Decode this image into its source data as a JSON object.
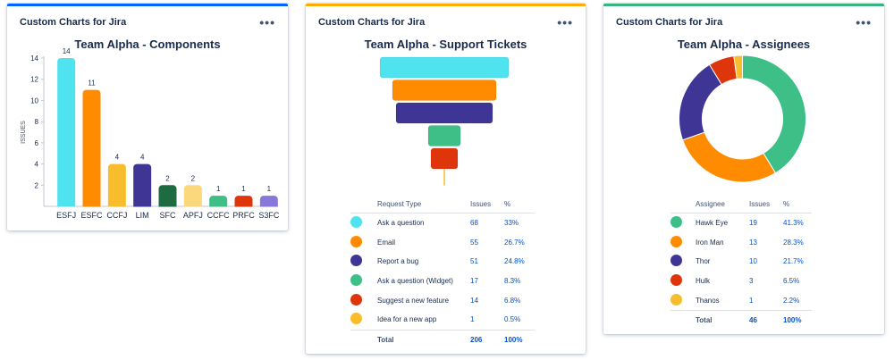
{
  "cards": [
    {
      "app_title": "Custom Charts for Jira",
      "menu_icon": "more-horizontal-icon",
      "accent": "#0065ff"
    },
    {
      "app_title": "Custom Charts for Jira",
      "menu_icon": "more-horizontal-icon",
      "accent": "#ffab00"
    },
    {
      "app_title": "Custom Charts for Jira",
      "menu_icon": "more-horizontal-icon",
      "accent": "#36b37e"
    }
  ],
  "chart_data": [
    {
      "type": "bar",
      "title": "Team Alpha - Components",
      "xlabel": "",
      "ylabel": "ISSUES",
      "ylim": [
        0,
        14
      ],
      "yticks": [
        2,
        4,
        6,
        8,
        10,
        12,
        14
      ],
      "categories": [
        "ESFJ",
        "ESFC",
        "CCFJ",
        "LIM",
        "SFC",
        "APFJ",
        "CCFC",
        "PRFC",
        "S3FC"
      ],
      "values": [
        14,
        11,
        4,
        4,
        2,
        2,
        1,
        1,
        1
      ],
      "colors": [
        "#4fe3f0",
        "#ff8b00",
        "#f8bd2c",
        "#3f3595",
        "#1e6b42",
        "#fbd87c",
        "#3ebf88",
        "#de350b",
        "#8777d9"
      ]
    },
    {
      "type": "funnel",
      "title": "Team Alpha - Support Tickets",
      "headers": {
        "label": "Request Type",
        "issues": "Issues",
        "pct": "%"
      },
      "categories": [
        "Ask a question",
        "Email",
        "Report a bug",
        "Ask a question (Widget)",
        "Suggest a new feature",
        "Idea for a new app"
      ],
      "values": [
        68,
        55,
        51,
        17,
        14,
        1
      ],
      "percent_labels": [
        "33%",
        "26.7%",
        "24.8%",
        "8.3%",
        "6.8%",
        "0.5%"
      ],
      "colors": [
        "#4fe3f0",
        "#ff8b00",
        "#3f3595",
        "#3ebf88",
        "#de350b",
        "#f8bd2c"
      ],
      "total": {
        "label": "Total",
        "issues": "206",
        "pct": "100%"
      }
    },
    {
      "type": "pie",
      "title": "Team Alpha - Assignees",
      "headers": {
        "label": "Assignee",
        "issues": "Issues",
        "pct": "%"
      },
      "categories": [
        "Hawk Eye",
        "Iron Man",
        "Thor",
        "Hulk",
        "Thanos"
      ],
      "values": [
        19,
        13,
        10,
        3,
        1
      ],
      "percent_labels": [
        "41.3%",
        "28.3%",
        "21.7%",
        "6.5%",
        "2.2%"
      ],
      "colors": [
        "#3ebf88",
        "#ff8b00",
        "#3f3595",
        "#de350b",
        "#f8bd2c"
      ],
      "total": {
        "label": "Total",
        "issues": "46",
        "pct": "100%"
      }
    }
  ]
}
